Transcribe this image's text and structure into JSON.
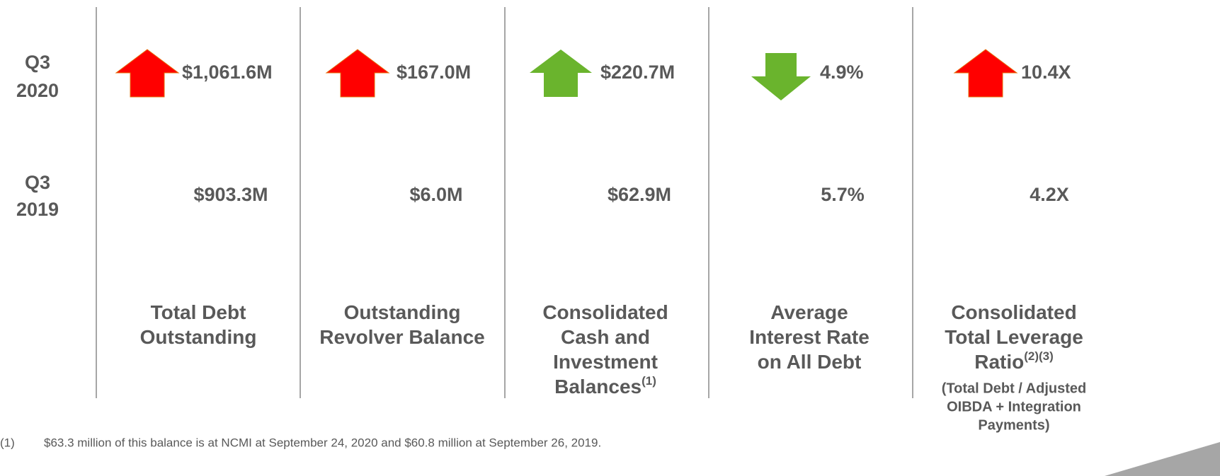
{
  "rows": [
    {
      "line1": "Q3",
      "line2": "2020"
    },
    {
      "line1": "Q3",
      "line2": "2019"
    }
  ],
  "columns": [
    {
      "current": "$1,061.6M",
      "prior": "$903.3M",
      "arrow": "up",
      "arrow_color": "#ff0000",
      "label_lines": [
        "Total Debt",
        "Outstanding"
      ]
    },
    {
      "current": "$167.0M",
      "prior": "$6.0M",
      "arrow": "up",
      "arrow_color": "#ff0000",
      "label_lines": [
        "Outstanding",
        "Revolver Balance"
      ]
    },
    {
      "current": "$220.7M",
      "prior": "$62.9M",
      "arrow": "up",
      "arrow_color": "#6ab42d",
      "label_lines": [
        "Consolidated",
        "Cash and",
        "Investment",
        "Balances"
      ],
      "label_note": "(1)"
    },
    {
      "current": "4.9%",
      "prior": "5.7%",
      "arrow": "down",
      "arrow_color": "#6ab42d",
      "label_lines": [
        "Average",
        "Interest Rate",
        "on All Debt"
      ]
    },
    {
      "current": "10.4X",
      "prior": "4.2X",
      "arrow": "up",
      "arrow_color": "#ff0000",
      "label_lines": [
        "Consolidated",
        "Total Leverage",
        "Ratio"
      ],
      "label_note": "(2)(3)",
      "sublabel_lines": [
        "(Total Debt / Adjusted",
        "OIBDA + Integration",
        "Payments)"
      ]
    }
  ],
  "footnote": {
    "marker": "(1)",
    "text": "$63.3 million of this balance is at NCMI at September 24, 2020 and $60.8 million at September 26, 2019."
  }
}
